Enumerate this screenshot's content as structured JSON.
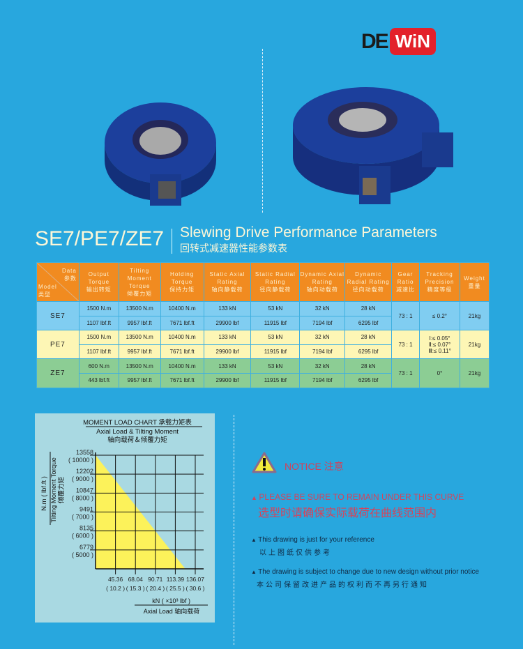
{
  "brand": {
    "logo_left": "DE",
    "logo_right": "WiN",
    "colors": {
      "red": "#e3212b",
      "dark": "#1b1b1b"
    }
  },
  "title": {
    "models": "SE7/PE7/ZE7",
    "en": "Slewing Drive Performance Parameters",
    "cn": "回转式减速器性能参数表"
  },
  "table": {
    "corner": {
      "data_en": "Data",
      "data_cn": "参数",
      "model_en": "Model",
      "model_cn": "类型"
    },
    "headers": [
      {
        "en": "Output Torque",
        "cn": "输出转矩"
      },
      {
        "en": "Tilting Moment Torque",
        "cn": "倾覆力矩"
      },
      {
        "en": "Holding Torque",
        "cn": "保持力矩"
      },
      {
        "en": "Static Axial Rating",
        "cn": "轴向静载荷"
      },
      {
        "en": "Static Radial Rating",
        "cn": "径向静载荷"
      },
      {
        "en": "Dynamic Axial Rating",
        "cn": "轴向动载荷"
      },
      {
        "en": "Dynamic Radial Rating",
        "cn": "径向动载荷"
      },
      {
        "en": "Gear Ratio",
        "cn": "减速比"
      },
      {
        "en": "Tracking Precision",
        "cn": "精度等级"
      },
      {
        "en": "Weight",
        "cn": "重量"
      }
    ],
    "rows": [
      {
        "model": "SE7",
        "metric": [
          "1500 N.m",
          "13500 N.m",
          "10400 N.m",
          "133 kN",
          "53 kN",
          "32 kN",
          "28 kN"
        ],
        "imperial": [
          "1107 lbf.ft",
          "9957 lbf.ft",
          "7671 lbf.ft",
          "29900 lbf",
          "11915 lbf",
          "7194 lbf",
          "6295 lbf"
        ],
        "ratio": "73 : 1",
        "precision": [
          "≤ 0.2°"
        ],
        "weight": "21kg"
      },
      {
        "model": "PE7",
        "metric": [
          "1500 N.m",
          "13500 N.m",
          "10400 N.m",
          "133 kN",
          "53 kN",
          "32 kN",
          "28 kN"
        ],
        "imperial": [
          "1107 lbf.ft",
          "9957 lbf.ft",
          "7671 lbf.ft",
          "29900 lbf",
          "11915 lbf",
          "7194 lbf",
          "6295 lbf"
        ],
        "ratio": "73 : 1",
        "precision": [
          "Ⅰ:≤ 0.05°",
          "Ⅱ:≤ 0.07°",
          "Ⅲ:≤ 0.11°"
        ],
        "weight": "21kg"
      },
      {
        "model": "ZE7",
        "metric": [
          "600 N.m",
          "13500 N.m",
          "10400 N.m",
          "133 kN",
          "53 kN",
          "32 kN",
          "28 kN"
        ],
        "imperial": [
          "443 lbf.ft",
          "9957 lbf.ft",
          "7671 lbf.ft",
          "29900 lbf",
          "11915 lbf",
          "7194 lbf",
          "6295 lbf"
        ],
        "ratio": "73 : 1",
        "precision": [
          "0°"
        ],
        "weight": "21kg"
      }
    ]
  },
  "chart_data": {
    "type": "area",
    "title": "MOMENT LOAD CHART 承载力矩表",
    "subtitle_en": "Axial Load & Tilting Moment",
    "subtitle_cn": "轴向载荷＆倾覆力矩",
    "ylabel_units": "N.m ( lbf.ft )",
    "ylabel_en": "Tilting Moment Torque",
    "ylabel_cn": "倾覆力矩",
    "xlabel_units": "kN ( ×10³ lbf )",
    "xlabel": "Axial Load 轴向载荷",
    "y_ticks": [
      {
        "v": 13558,
        "alt": "( 10000 )"
      },
      {
        "v": 12202,
        "alt": "( 9000 )"
      },
      {
        "v": 10847,
        "alt": "( 8000 )"
      },
      {
        "v": 9491,
        "alt": "( 7000 )"
      },
      {
        "v": 8135,
        "alt": "( 6000 )"
      },
      {
        "v": 6779,
        "alt": "( 5000 )"
      }
    ],
    "x_ticks": [
      {
        "v": 45.36,
        "alt": "( 10.2 )"
      },
      {
        "v": 68.04,
        "alt": "( 15.3 )"
      },
      {
        "v": 90.71,
        "alt": "( 20.4 )"
      },
      {
        "v": 113.39,
        "alt": "( 25.5 )"
      },
      {
        "v": 136.07,
        "alt": "( 30.6 )"
      }
    ],
    "xlim": [
      22.68,
      136.07
    ],
    "ylim": [
      5423,
      13558
    ],
    "series": [
      {
        "x": [
          22.68,
          90.71,
          124.7
        ],
        "y": [
          13558,
          8135,
          5423
        ]
      }
    ],
    "fill_color": "#fcf25a",
    "grid": true
  },
  "notice": {
    "title": "NOTICE 注意",
    "warning_en": "PLEASE BE SURE TO REMAIN UNDER THIS CURVE",
    "warning_cn": "选型时请确保实际载荷在曲线范围内",
    "notes": [
      {
        "en": "This drawing is just for your reference",
        "cn": "以上图纸仅供参考"
      },
      {
        "en": "The drawing is subject to change due to new design without prior notice",
        "cn": "本公司保留改进产品的权利而不再另行通知"
      }
    ]
  }
}
